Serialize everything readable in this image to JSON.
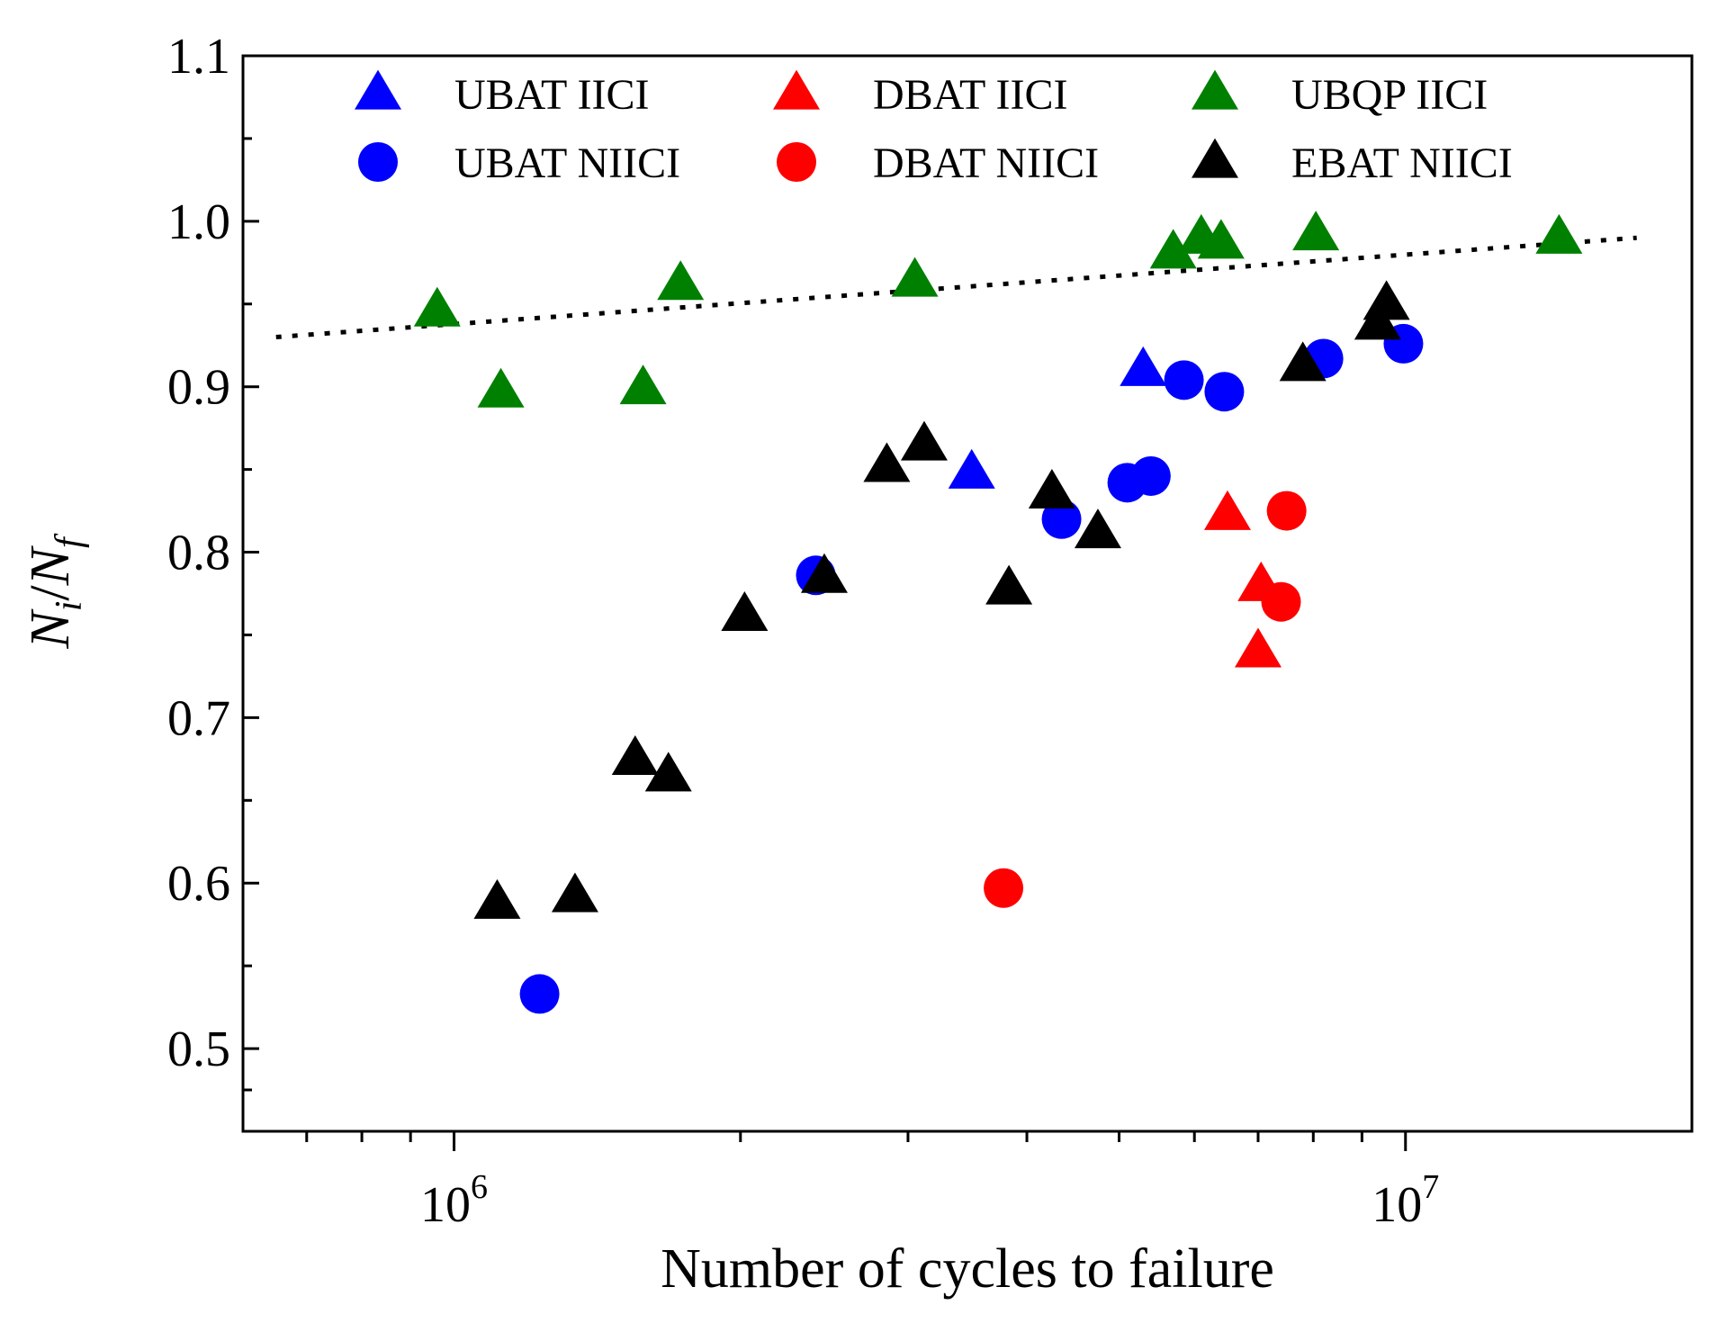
{
  "chart_data": {
    "type": "scatter",
    "xscale": "log",
    "xlabel": "Number of cycles to failure",
    "ylabel": {
      "main": "N",
      "sub1": "i",
      "slash": "/",
      "main2": "N",
      "sub2": "f"
    },
    "xlim": [
      600000,
      20000000
    ],
    "ylim": [
      0.45,
      1.1
    ],
    "xticks": [
      {
        "value": 1000000,
        "base": "10",
        "exp": "6"
      },
      {
        "value": 10000000,
        "base": "10",
        "exp": "7"
      }
    ],
    "yticks": [
      {
        "value": 0.5,
        "label": "0.5"
      },
      {
        "value": 0.6,
        "label": "0.6"
      },
      {
        "value": 0.7,
        "label": "0.7"
      },
      {
        "value": 0.8,
        "label": "0.8"
      },
      {
        "value": 0.9,
        "label": "0.9"
      },
      {
        "value": 1.0,
        "label": "1.0"
      },
      {
        "value": 1.1,
        "label": "1.1"
      }
    ],
    "legend_position": "top",
    "series": [
      {
        "name": "UBAT IICI",
        "marker": "triangle",
        "color": "#0000ff",
        "points": [
          [
            5300000.0,
            0.91
          ],
          [
            3500000.0,
            0.848
          ]
        ]
      },
      {
        "name": "UBAT NIICI",
        "marker": "circle",
        "color": "#0000ff",
        "points": [
          [
            1230000.0,
            0.533
          ],
          [
            2400000.0,
            0.786
          ],
          [
            4350000.0,
            0.82
          ],
          [
            5100000.0,
            0.842
          ],
          [
            5400000.0,
            0.846
          ],
          [
            5850000.0,
            0.904
          ],
          [
            6450000.0,
            0.897
          ],
          [
            8200000.0,
            0.917
          ],
          [
            9950000.0,
            0.926
          ]
        ]
      },
      {
        "name": "DBAT IICI",
        "marker": "triangle",
        "color": "#ff0000",
        "points": [
          [
            6500000.0,
            0.823
          ],
          [
            7050000.0,
            0.78
          ],
          [
            7000000.0,
            0.74
          ]
        ]
      },
      {
        "name": "DBAT NIICI",
        "marker": "circle",
        "color": "#ff0000",
        "points": [
          [
            7500000.0,
            0.825
          ],
          [
            7400000.0,
            0.77
          ],
          [
            3780000.0,
            0.597
          ]
        ]
      },
      {
        "name": "UBQP IICI",
        "marker": "triangle",
        "color": "#008000",
        "points": [
          [
            960000.0,
            0.946
          ],
          [
            1120000.0,
            0.897
          ],
          [
            1580000.0,
            0.899
          ],
          [
            1730000.0,
            0.962
          ],
          [
            3050000.0,
            0.964
          ],
          [
            5700000.0,
            0.981
          ],
          [
            6100000.0,
            0.99
          ],
          [
            6400000.0,
            0.987
          ],
          [
            8050000.0,
            0.992
          ],
          [
            14500000.0,
            0.99
          ]
        ]
      },
      {
        "name": "EBAT NIICI",
        "marker": "triangle",
        "color": "#000000",
        "points": [
          [
            1110000.0,
            0.588
          ],
          [
            1340000.0,
            0.592
          ],
          [
            1550000.0,
            0.675
          ],
          [
            1680000.0,
            0.665
          ],
          [
            2020000.0,
            0.762
          ],
          [
            2450000.0,
            0.785
          ],
          [
            2850000.0,
            0.852
          ],
          [
            3120000.0,
            0.865
          ],
          [
            3830000.0,
            0.778
          ],
          [
            4250000.0,
            0.836
          ],
          [
            4750000.0,
            0.812
          ],
          [
            7800000.0,
            0.913
          ],
          [
            9550000.0,
            0.95
          ],
          [
            9350000.0,
            0.938
          ]
        ]
      }
    ],
    "trend_line": {
      "style": "dotted",
      "color": "#000000",
      "points": [
        [
          650000,
          0.93
        ],
        [
          17500000,
          0.99
        ]
      ]
    }
  }
}
